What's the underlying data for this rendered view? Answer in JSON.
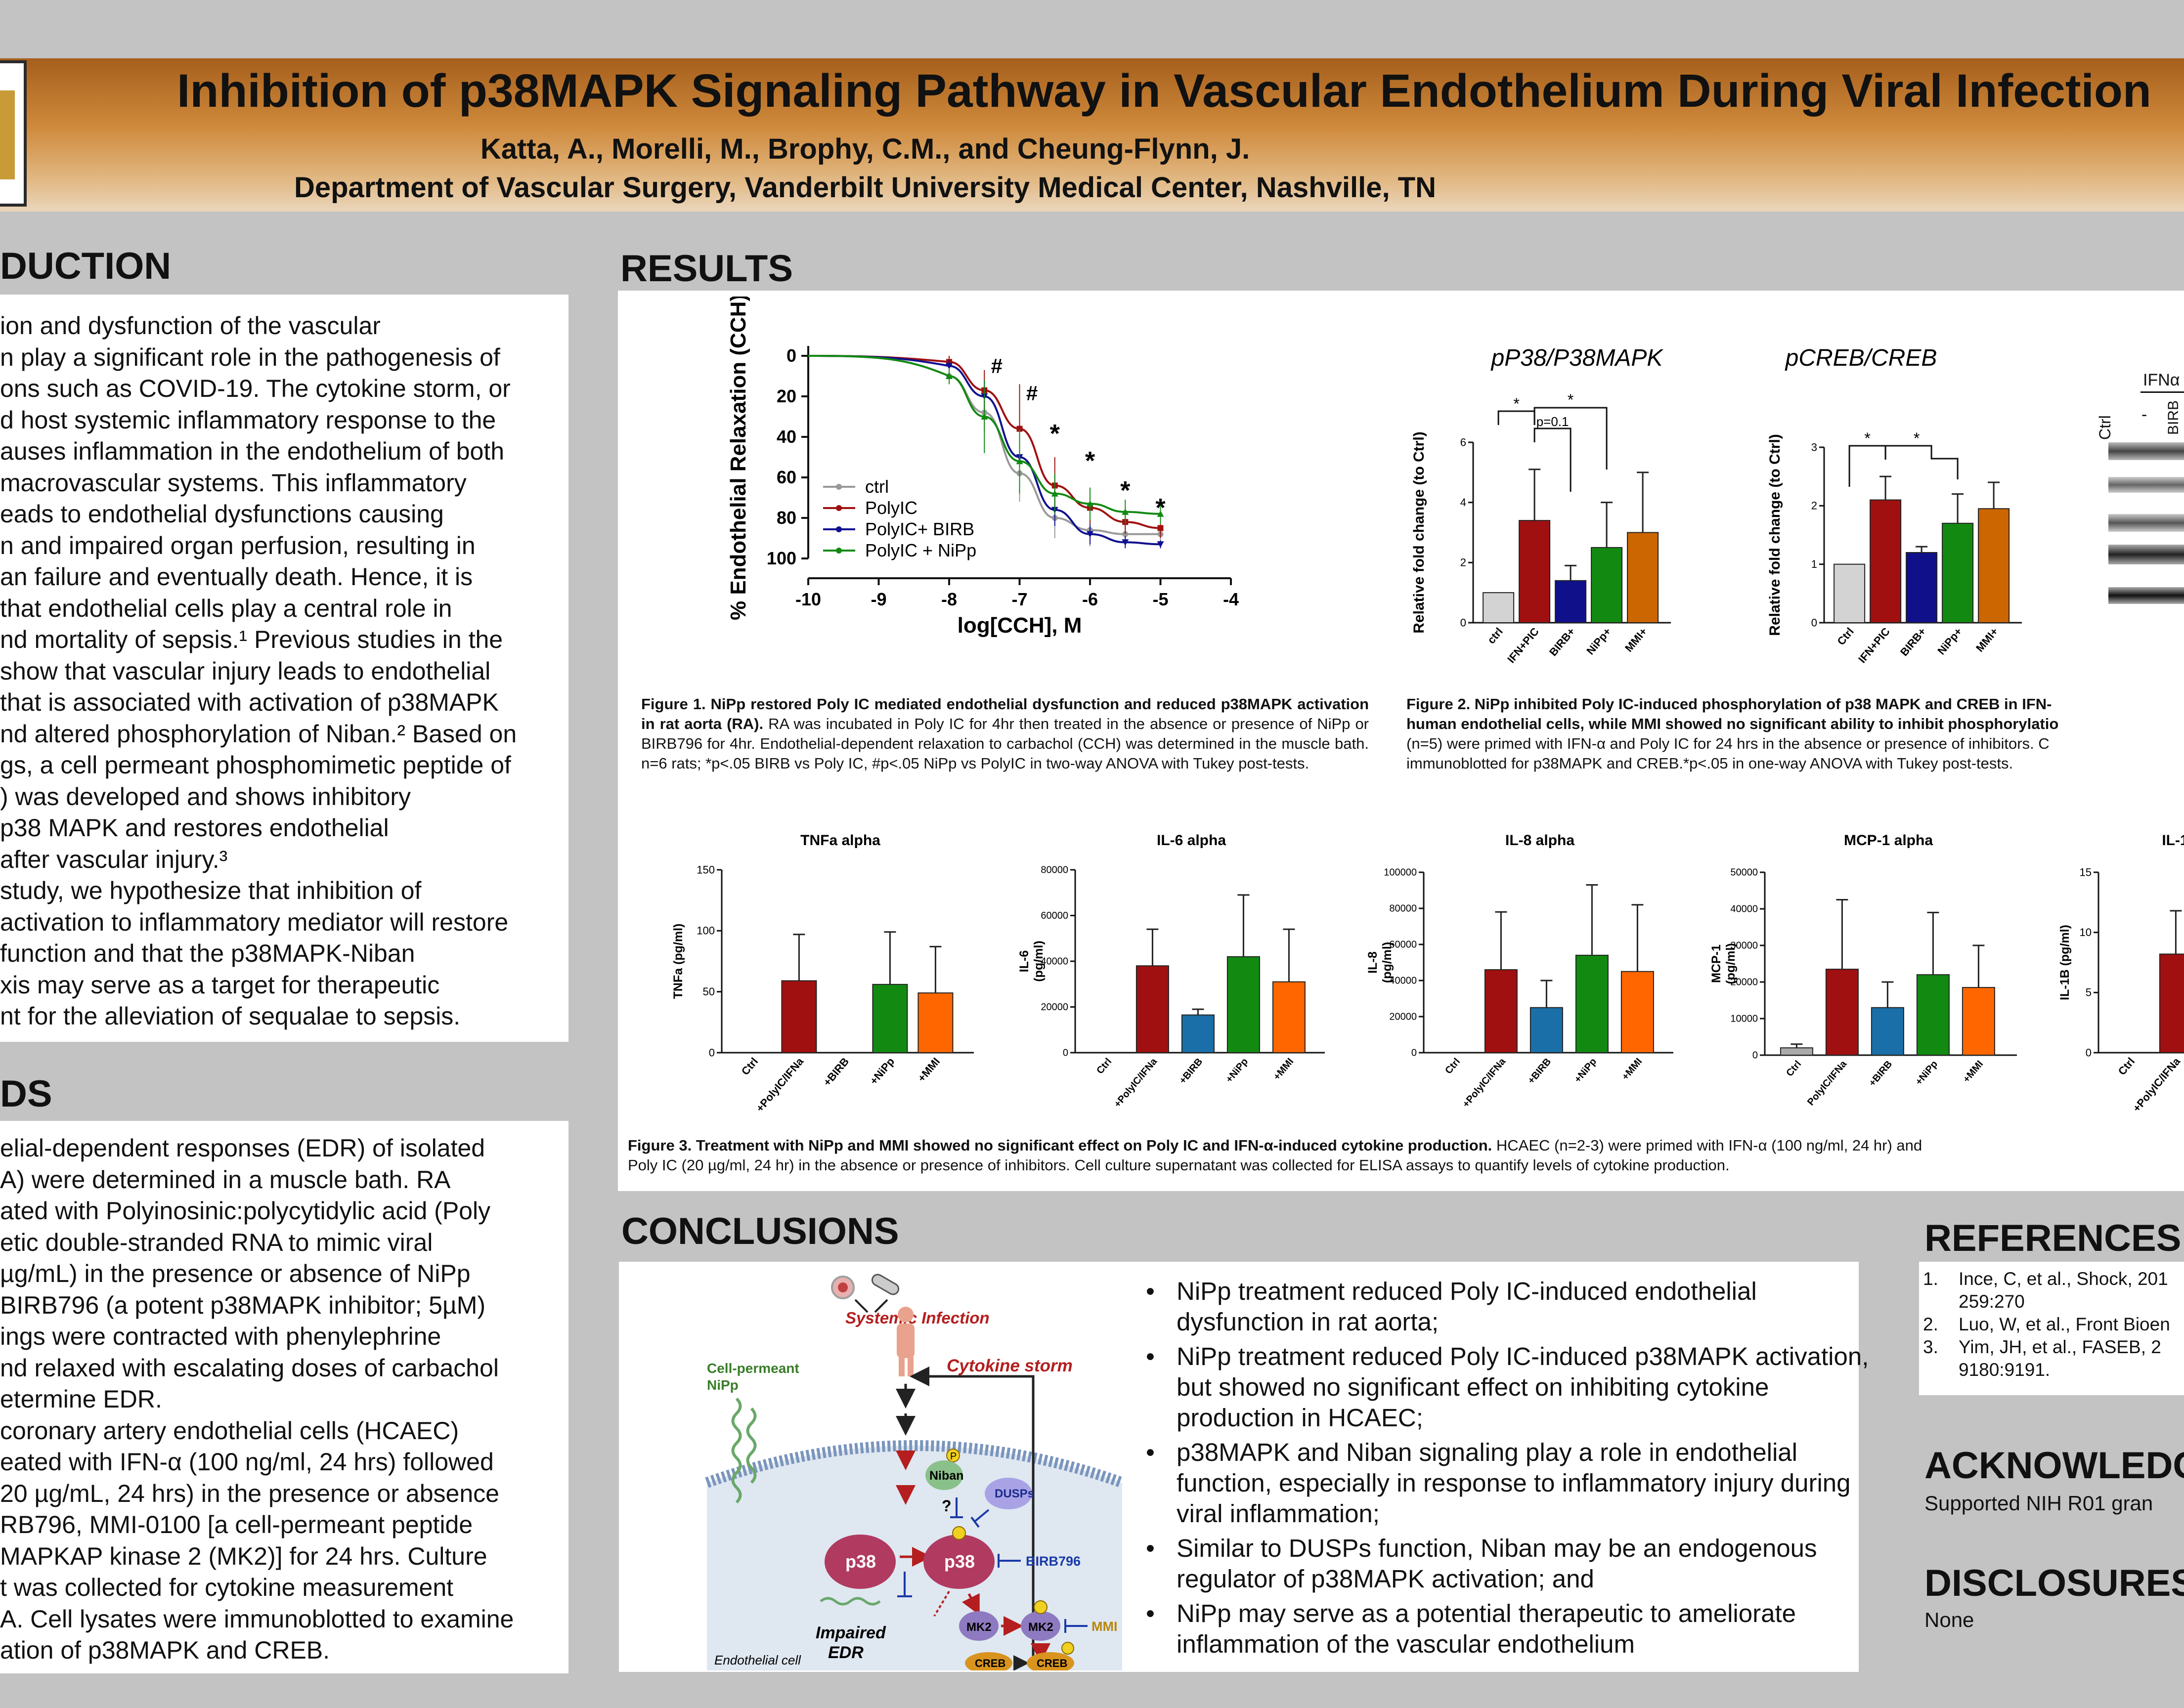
{
  "header": {
    "title": "Inhibition of p38MAPK Signaling Pathway in Vascular Endothelium During Viral Infection",
    "authors": "Katta, A., Morelli, M., Brophy, C.M., and Cheung-Flynn, J.",
    "department": "Department of Vascular Surgery, Vanderbilt University Medical Center, Nashville, TN"
  },
  "introduction": {
    "heading": "DUCTION",
    "lines": [
      "ion and dysfunction of the vascular",
      "n play a significant role in the pathogenesis of",
      "ons such as COVID-19. The cytokine storm, or",
      "d host systemic inflammatory response to the",
      "auses inflammation in the endothelium of both",
      "macrovascular systems. This inflammatory",
      "eads to endothelial dysfunctions causing",
      "n and impaired organ perfusion, resulting in",
      "an failure and eventually death. Hence, it is",
      "that endothelial cells play a central role in",
      "nd mortality of sepsis.¹  Previous studies in the",
      "show that vascular injury leads to endothelial",
      "that is associated with activation of p38MAPK",
      "nd altered phosphorylation of Niban.² Based on",
      "gs, a cell permeant phosphomimetic peptide of",
      ") was developed and shows inhibitory",
      " p38 MAPK and restores endothelial",
      " after vascular injury.³",
      "study, we hypothesize that inhibition of",
      "activation to inflammatory mediator will restore",
      "function and that the p38MAPK-Niban",
      "xis may serve as a target for therapeutic",
      "nt for the alleviation of sequalae to sepsis."
    ]
  },
  "methods": {
    "heading": "DS",
    "lines": [
      "elial-dependent responses (EDR) of isolated",
      "A) were determined in a muscle bath. RA",
      "ated with Polyinosinic:polycytidylic acid (Poly",
      "etic double-stranded RNA to mimic viral",
      "µg/mL) in the presence or absence of NiPp",
      " BIRB796 (a potent p38MAPK inhibitor; 5µM)",
      "ings were contracted with phenylephrine",
      "nd relaxed with escalating doses of carbachol",
      "etermine EDR.",
      " coronary artery endothelial cells (HCAEC)",
      "eated with IFN-α (100 ng/ml, 24 hrs) followed",
      "20 µg/mL, 24 hrs) in the presence or absence",
      "RB796, MMI-0100 [a cell-permeant peptide",
      "MAPKAP kinase 2 (MK2)] for 24 hrs. Culture",
      "t was collected for cytokine measurement",
      "A. Cell lysates were immunoblotted to examine",
      "ation of p38MAPK and CREB."
    ]
  },
  "results": {
    "heading": "RESULTS",
    "fig1_caption_bold": "Figure 1. NiPp restored Poly IC mediated endothelial dysfunction and reduced p38MAPK activation in rat aorta (RA).",
    "fig1_caption": " RA was incubated in Poly IC for 4hr then treated in the absence or presence of NiPp or BIRB796 for 4hr. Endothelial-dependent relaxation to carbachol (CCH) was determined in the muscle bath. n=6 rats; *p<.05 BIRB vs Poly IC, #p<.05 NiPp vs PolyIC in two-way ANOVA with Tukey post-tests.",
    "fig2_caption_bold": "Figure 2. NiPp inhibited Poly IC-induced phosphorylation of p38 MAPK and CREB in IFN-",
    "fig2_caption_bold2": "human endothelial cells, while MMI showed no significant ability to inhibit phosphorylatio",
    "fig2_caption": "(n=5) were primed with IFN-α and Poly IC for 24 hrs in the absence or presence of inhibitors. C",
    "fig2_caption2": "immunoblotted for p38MAPK and CREB.*p<.05 in one-way ANOVA with Tukey post-tests.",
    "fig3_caption_bold": "Figure 3. Treatment with NiPp and MMI showed no significant effect on Poly IC and IFN-α-induced cytokine production.",
    "fig3_caption": " HCAEC (n=2-3) were primed with IFN-α (100 ng/ml, 24 hr) and",
    "fig3_caption2": "Poly IC (20 µg/ml, 24 hr) in the absence or presence of inhibitors. Cell culture supernatant was collected for ELISA assays to quantify levels of cytokine production.",
    "blot_label": "IFNα",
    "blot_ctrl": "Ctrl",
    "blot_minus": "-",
    "blot_birb": "BIRB"
  },
  "conclusions": {
    "heading": "CONCLUSIONS",
    "bullets": [
      "NiPp treatment reduced Poly IC-induced endothelial dysfunction in rat aorta;",
      "NiPp treatment reduced Poly IC-induced p38MAPK activation, but showed no significant effect on inhibiting cytokine production in HCAEC;",
      "p38MAPK and Niban signaling play a role in endothelial function, especially in response to inflammatory injury during viral inflammation;",
      "Similar to DUSPs function, Niban may be an endogenous regulator of p38MAPK activation; and",
      "NiPp may serve as a potential therapeutic to ameliorate inflammation of the vascular endothelium"
    ],
    "diagram": {
      "systemic_infection": "Systemic Infection",
      "cytokine_storm": "Cytokine storm",
      "cell_permeant": "Cell-permeant",
      "nipp": "NiPp",
      "niban": "Niban",
      "dusps": "DUSPs",
      "question": "?",
      "p38": "p38",
      "p38_active": "p38",
      "birb": "BIRB796",
      "impaired": "Impaired",
      "edr": "EDR",
      "mk2": "MK2",
      "mk2_active": "MK2",
      "mmi": "MMI",
      "creb": "CREB",
      "creb_active": "CREB",
      "p": "P",
      "endothelial_cell": "Endothelial cell"
    }
  },
  "references": {
    "heading": "REFERENCES",
    "items": [
      {
        "num": "1.",
        "text": "Ince, C, et al., Shock, 201",
        "text2": "259:270"
      },
      {
        "num": "2.",
        "text": "Luo, W, et al., Front Bioen",
        "text2": ""
      },
      {
        "num": "3.",
        "text": "Yim, JH, et al., FASEB, 2",
        "text2": "9180:9191."
      }
    ]
  },
  "acknowledgements": {
    "heading": "ACKNOWLEDG",
    "text": "Supported NIH R01 gran"
  },
  "disclosures": {
    "heading": "DISCLOSURES",
    "text": "None"
  },
  "chart_data": [
    {
      "type": "line",
      "title": "",
      "xlabel": "log[CCH], M",
      "ylabel": "% Endothelial Relaxation (CCH)",
      "xlim": [
        -10,
        -4
      ],
      "ylim": [
        0,
        100
      ],
      "y_inverted": true,
      "x_ticks": [
        "-10",
        "-9",
        "-8",
        "-7",
        "-6",
        "-5",
        "-4"
      ],
      "y_ticks": [
        "0",
        "20",
        "40",
        "60",
        "80",
        "100"
      ],
      "legend_position": "bottom-left",
      "series": [
        {
          "name": "ctrl",
          "color": "#999999",
          "x": [
            -8,
            -7.5,
            -7,
            -6.5,
            -6,
            -5.5,
            -5
          ],
          "y": [
            10,
            28,
            58,
            80,
            86,
            88,
            88
          ],
          "err": [
            4,
            10,
            14,
            10,
            8,
            6,
            6
          ],
          "marker": "circle"
        },
        {
          "name": "PolyIC",
          "color": "#a01010",
          "x": [
            -8,
            -7.5,
            -7,
            -6.5,
            -6,
            -5.5,
            -5
          ],
          "y": [
            3,
            17,
            36,
            64,
            75,
            82,
            85
          ],
          "err": [
            3,
            10,
            22,
            14,
            8,
            6,
            5
          ],
          "marker": "square"
        },
        {
          "name": "PolyIC+ BIRB",
          "color": "#101090",
          "x": [
            -8,
            -7.5,
            -7,
            -6.5,
            -6,
            -5.5,
            -5
          ],
          "y": [
            5,
            20,
            50,
            76,
            88,
            92,
            93
          ],
          "err": [
            3,
            8,
            12,
            8,
            5,
            3,
            2
          ],
          "marker": "triangle-down"
        },
        {
          "name": "PolyIC + NiPp",
          "color": "#128a12",
          "x": [
            -8,
            -7.5,
            -7,
            -6.5,
            -6,
            -5.5,
            -5
          ],
          "y": [
            10,
            30,
            52,
            68,
            73,
            77,
            78
          ],
          "err": [
            4,
            18,
            16,
            10,
            8,
            6,
            5
          ],
          "marker": "triangle"
        }
      ],
      "annotations": [
        {
          "label": "#",
          "x": -7.5
        },
        {
          "label": "#",
          "x": -7
        },
        {
          "label": "*",
          "x": -6.5
        },
        {
          "label": "*",
          "x": -6
        },
        {
          "label": "*",
          "x": -5.5
        },
        {
          "label": "*",
          "x": -5
        }
      ]
    },
    {
      "type": "bar",
      "title": "pP38/P38MAPK",
      "ylabel": "Relative fold change (to Ctrl)",
      "ylim": [
        0,
        6
      ],
      "y_ticks": [
        "0",
        "2",
        "4",
        "6"
      ],
      "categories": [
        "ctrl",
        "IFN+PIC",
        "BIRB+",
        "NiPp+",
        "MMI+"
      ],
      "values": [
        1.0,
        3.4,
        1.4,
        2.5,
        3.0
      ],
      "err": [
        0,
        1.7,
        0.5,
        1.5,
        2.0
      ],
      "colors": [
        "#d3d3d3",
        "#a01010",
        "#10108a",
        "#128a12",
        "#cc6600"
      ],
      "annotations": [
        "*",
        "p=0.1",
        "*"
      ]
    },
    {
      "type": "bar",
      "title": "pCREB/CREB",
      "ylabel": "Relative fold change (to Ctrl)",
      "ylim": [
        0,
        3
      ],
      "y_ticks": [
        "0",
        "1",
        "2",
        "3"
      ],
      "categories": [
        "Ctrl",
        "IFN+PIC",
        "BIRB+",
        "NiPp+",
        "MMI+"
      ],
      "values": [
        1.0,
        2.1,
        1.2,
        1.7,
        1.95
      ],
      "err": [
        0,
        0.4,
        0.1,
        0.5,
        0.45
      ],
      "colors": [
        "#d3d3d3",
        "#a01010",
        "#10108a",
        "#128a12",
        "#cc6600"
      ],
      "annotations": [
        "*",
        "*"
      ]
    },
    {
      "type": "bar",
      "title": "TNFa alpha",
      "ylabel": "TNFa (pg/ml)",
      "ylim": [
        0,
        150
      ],
      "y_ticks": [
        "0",
        "50",
        "100",
        "150"
      ],
      "categories": [
        "Ctrl",
        "+PolyIC/IFNa",
        "+BIRB",
        "+NiPp",
        "+MMI"
      ],
      "values": [
        0,
        59,
        0,
        56,
        49
      ],
      "err": [
        0,
        38,
        0,
        43,
        38
      ],
      "colors": [
        "#aaaaaa",
        "#a01010",
        "#10108a",
        "#128a12",
        "#ff6600"
      ]
    },
    {
      "type": "bar",
      "title": "IL-6 alpha",
      "ylabel": "IL-6\n(pg/ml)",
      "ylim": [
        0,
        80000
      ],
      "y_ticks": [
        "0",
        "20000",
        "40000",
        "60000",
        "80000"
      ],
      "categories": [
        "Ctrl",
        "+PolyIC/IFNa",
        "+BIRB",
        "+NiPp",
        "+MMI"
      ],
      "values": [
        0,
        38000,
        16500,
        42000,
        31000
      ],
      "err": [
        0,
        16000,
        2500,
        27000,
        23000
      ],
      "colors": [
        "#aaaaaa",
        "#a01010",
        "#1a6fa8",
        "#128a12",
        "#ff6600"
      ]
    },
    {
      "type": "bar",
      "title": "IL-8 alpha",
      "ylabel": "IL-8\n(pg/ml)",
      "ylim": [
        0,
        100000
      ],
      "y_ticks": [
        "0",
        "20000",
        "40000",
        "60000",
        "80000",
        "100000"
      ],
      "categories": [
        "Ctrl",
        "+PolyIC/IFNa",
        "+BIRB",
        "+NiPp",
        "+MMI"
      ],
      "values": [
        0,
        46000,
        25000,
        54000,
        45000
      ],
      "err": [
        0,
        32000,
        15000,
        39000,
        37000
      ],
      "colors": [
        "#aaaaaa",
        "#a01010",
        "#1a6fa8",
        "#128a12",
        "#ff6600"
      ]
    },
    {
      "type": "bar",
      "title": "MCP-1 alpha",
      "ylabel": "MCP-1\n(pg/ml)",
      "ylim": [
        0,
        50000
      ],
      "y_ticks": [
        "0",
        "10000",
        "20000",
        "30000",
        "40000",
        "50000"
      ],
      "categories": [
        "Ctrl",
        "PolyIC/IFNa",
        "+BIRB",
        "+NiPp",
        "+MMI"
      ],
      "values": [
        2000,
        23500,
        13000,
        22000,
        18500
      ],
      "err": [
        1000,
        19000,
        7000,
        17000,
        11500
      ],
      "colors": [
        "#aaaaaa",
        "#a01010",
        "#1a6fa8",
        "#128a12",
        "#ff6600"
      ]
    },
    {
      "type": "bar",
      "title": "IL-1",
      "ylabel": "IL-1B (pg/ml)",
      "ylim": [
        0,
        15
      ],
      "y_ticks": [
        "0",
        "5",
        "10",
        "15"
      ],
      "categories": [
        "Ctrl",
        "+PolyIC/IFNa"
      ],
      "values": [
        0,
        8.2
      ],
      "err": [
        0,
        3.6
      ],
      "colors": [
        "#aaaaaa",
        "#a01010"
      ]
    }
  ]
}
